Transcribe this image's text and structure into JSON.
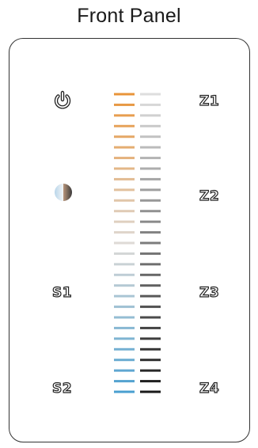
{
  "title": "Front Panel",
  "left_labels": {
    "s1": "S1",
    "s2": "S2"
  },
  "right_labels": {
    "z1": "Z1",
    "z2": "Z2",
    "z3": "Z3",
    "z4": "Z4"
  },
  "icons": {
    "top": "power-icon",
    "middle": "color-temperature-icon"
  },
  "colors": {
    "warm": "#e8943a",
    "cool": "#4a9fd0",
    "light_gray": "#dedede",
    "dark_gray": "#1a1a1a"
  },
  "bar_rows": 29
}
